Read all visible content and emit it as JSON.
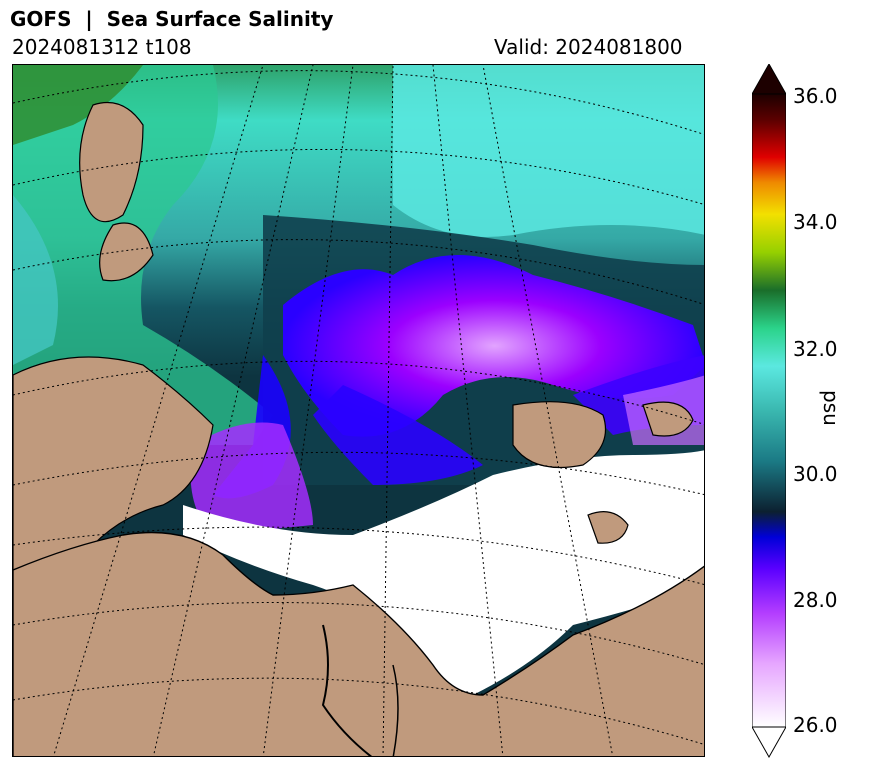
{
  "header": {
    "title": "GOFS  |  Sea Surface Salinity",
    "run": "2024081312 t108",
    "valid": "Valid: 2024081800"
  },
  "colorbar": {
    "label": "psu",
    "ticks": [
      "36.0",
      "34.0",
      "32.0",
      "30.0",
      "28.0",
      "26.0"
    ],
    "min": 26.0,
    "max": 36.0,
    "extend": "both"
  },
  "colors": {
    "land": "#c09a7d",
    "ice": "#ffffff",
    "fresh": "#9a00ff",
    "blue": "#1a00ff",
    "dark_teal": "#0e3d4e",
    "teal": "#38b5b0",
    "cyan": "#56e8e0",
    "green": "#1fd38a",
    "dark_green": "#2f8a2a"
  }
}
